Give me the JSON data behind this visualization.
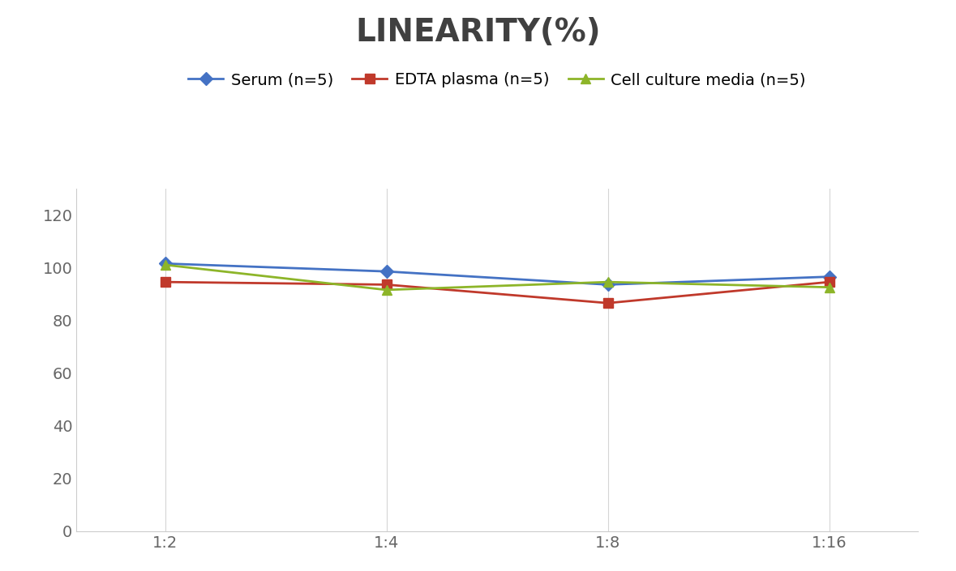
{
  "title": "LINEARITY(%)",
  "title_fontsize": 28,
  "title_fontweight": "bold",
  "title_color": "#404040",
  "x_labels": [
    "1:2",
    "1:4",
    "1:8",
    "1:16"
  ],
  "x_positions": [
    0,
    1,
    2,
    3
  ],
  "series": [
    {
      "label": "Serum (n=5)",
      "values": [
        101.5,
        98.5,
        93.5,
        96.5
      ],
      "color": "#4472C4",
      "marker": "D",
      "markersize": 8,
      "linewidth": 2
    },
    {
      "label": "EDTA plasma (n=5)",
      "values": [
        94.5,
        93.5,
        86.5,
        94.5
      ],
      "color": "#C0392B",
      "marker": "s",
      "markersize": 8,
      "linewidth": 2
    },
    {
      "label": "Cell culture media (n=5)",
      "values": [
        101.0,
        91.5,
        94.5,
        92.5
      ],
      "color": "#8DB529",
      "marker": "^",
      "markersize": 9,
      "linewidth": 2
    }
  ],
  "ylim": [
    0,
    130
  ],
  "yticks": [
    0,
    20,
    40,
    60,
    80,
    100,
    120
  ],
  "grid_color": "#D5D5D5",
  "background_color": "#FFFFFF",
  "legend_fontsize": 14,
  "tick_fontsize": 14,
  "axis_label_color": "#666666"
}
